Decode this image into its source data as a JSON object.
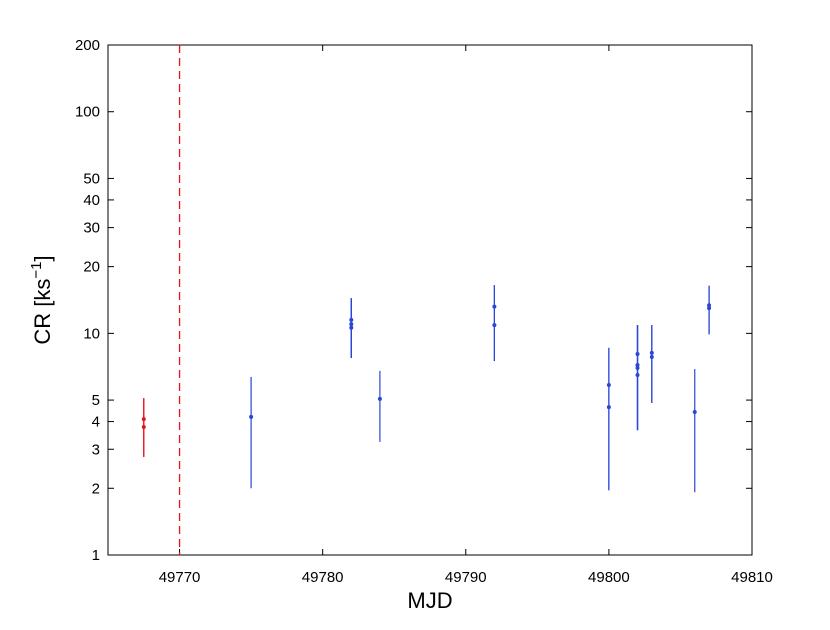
{
  "chart_data": {
    "type": "scatter",
    "xlabel": "MJD",
    "ylabel": {
      "base": "CR [ks",
      "sup": "−1",
      "tail": "]"
    },
    "xlim": [
      49765,
      49810
    ],
    "xticks": [
      49770,
      49780,
      49790,
      49800,
      49810
    ],
    "ylim": [
      1,
      200
    ],
    "yticks": [
      1,
      2,
      3,
      4,
      5,
      10,
      20,
      30,
      40,
      50,
      100,
      200
    ],
    "log_y": true,
    "vline": {
      "x": 49770,
      "color": "#e8141b"
    },
    "series": [
      {
        "color": "#e8141b",
        "x": [
          49767.5,
          49767.5
        ],
        "values": [
          4.1,
          3.78
        ],
        "err_low": [
          2.77,
          2.77
        ],
        "err_high": [
          5.1,
          5.1
        ]
      },
      {
        "color": "#2a46d6",
        "x": [
          49775,
          49782,
          49782,
          49782,
          49784,
          49792,
          49792,
          49800,
          49800,
          49802,
          49802,
          49802,
          49802,
          49803,
          49803,
          49806,
          49807,
          49807
        ],
        "values": [
          4.2,
          11.5,
          11.0,
          10.6,
          5.06,
          13.2,
          10.9,
          5.85,
          4.65,
          8.07,
          7.2,
          6.98,
          6.49,
          8.16,
          7.82,
          4.42,
          13.4,
          13.0
        ],
        "err_low": [
          2.0,
          7.74,
          7.74,
          7.74,
          3.24,
          7.5,
          7.5,
          1.96,
          1.96,
          3.66,
          3.66,
          3.66,
          3.66,
          4.85,
          4.85,
          1.92,
          9.9,
          9.9
        ],
        "err_high": [
          6.36,
          14.4,
          14.4,
          14.4,
          6.77,
          16.5,
          16.5,
          8.6,
          8.6,
          10.9,
          10.9,
          10.9,
          10.9,
          10.9,
          10.9,
          6.9,
          16.4,
          16.4
        ]
      }
    ]
  }
}
